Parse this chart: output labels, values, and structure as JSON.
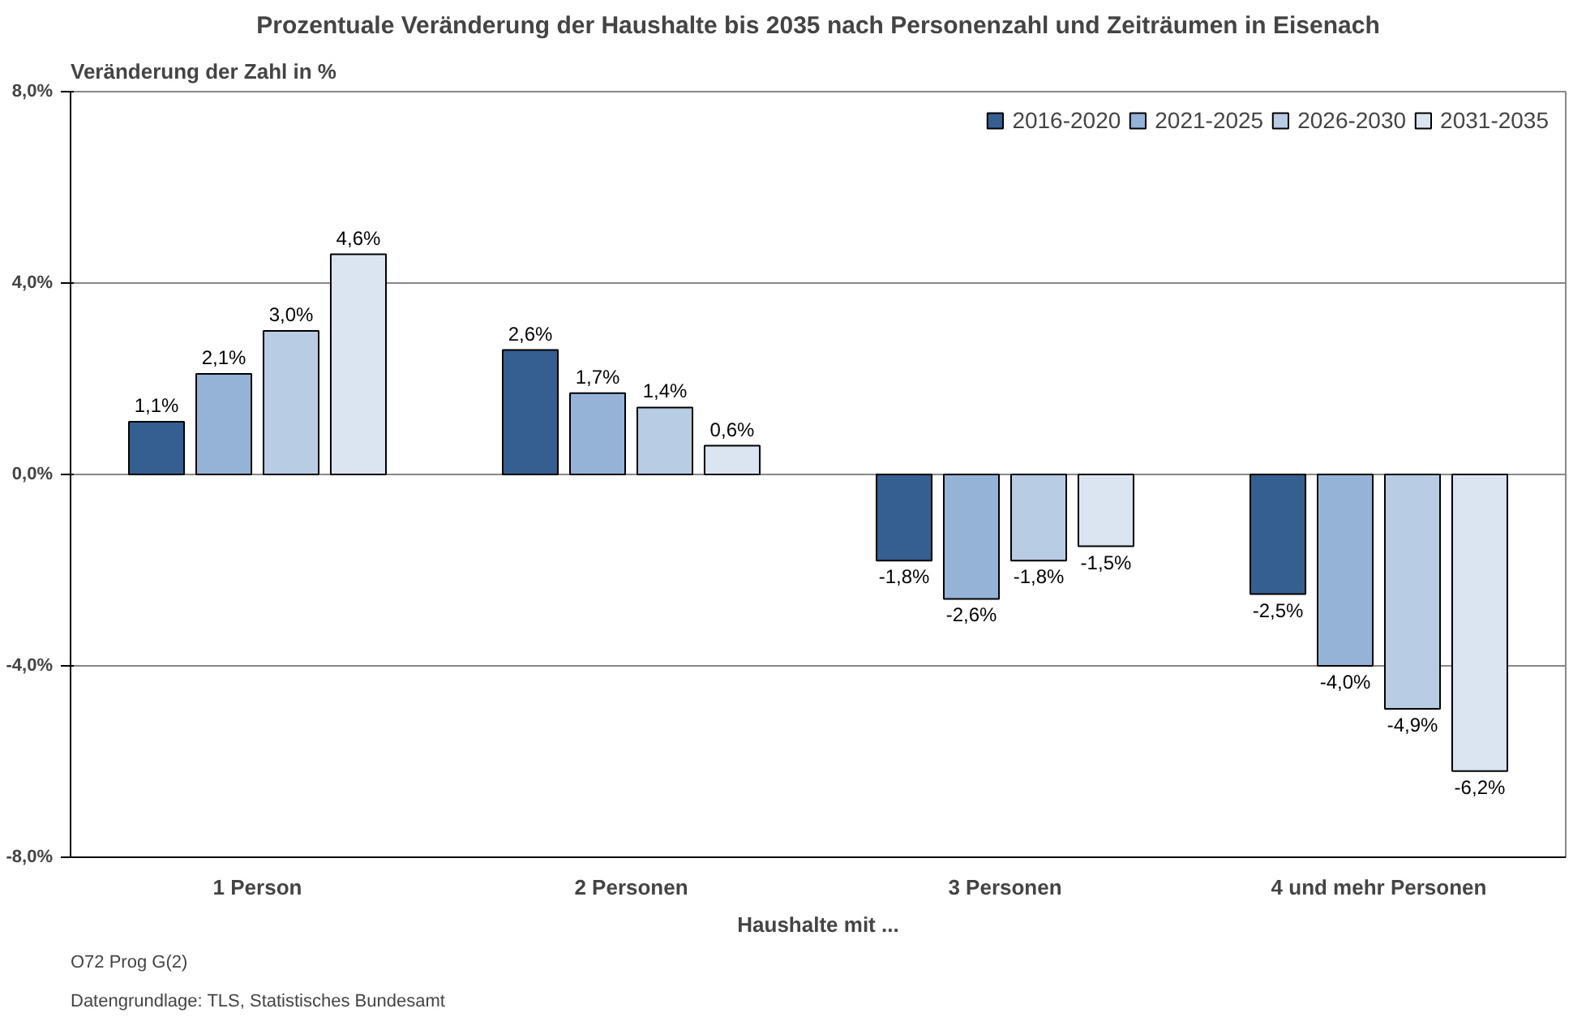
{
  "chart_data": {
    "type": "bar",
    "title": "Prozentuale Veränderung der Haushalte bis 2035 nach Personenzahl und Zeiträumen in Eisenach",
    "ylabel": "Veränderung der Zahl in %",
    "xlabel": "Haushalte mit ...",
    "categories": [
      "1 Person",
      "2 Personen",
      "3 Personen",
      "4 und mehr Personen"
    ],
    "series": [
      {
        "name": "2016-2020",
        "color": "#365f91",
        "values": [
          1.1,
          2.6,
          -1.8,
          -2.5
        ],
        "value_labels": [
          "1,1%",
          "2,6%",
          "-1,8%",
          "-2,5%"
        ]
      },
      {
        "name": "2021-2025",
        "color": "#95b3d7",
        "values": [
          2.1,
          1.7,
          -2.6,
          -4.0
        ],
        "value_labels": [
          "2,1%",
          "1,7%",
          "-2,6%",
          "-4,0%"
        ]
      },
      {
        "name": "2026-2030",
        "color": "#b8cce4",
        "values": [
          3.0,
          1.4,
          -1.8,
          -4.9
        ],
        "value_labels": [
          "3,0%",
          "1,4%",
          "-1,8%",
          "-4,9%"
        ]
      },
      {
        "name": "2031-2035",
        "color": "#dbe5f1",
        "values": [
          4.6,
          0.6,
          -1.5,
          -6.2
        ],
        "value_labels": [
          "4,6%",
          "0,6%",
          "-1,5%",
          "-6,2%"
        ]
      }
    ],
    "ylim": [
      -8,
      8
    ],
    "yticks": [
      {
        "value": -8,
        "label": "-8,0%"
      },
      {
        "value": -4,
        "label": "-4,0%"
      },
      {
        "value": 0,
        "label": "0,0%"
      },
      {
        "value": 4,
        "label": "4,0%"
      },
      {
        "value": 8,
        "label": "8,0%"
      }
    ],
    "grid": "y",
    "legend": "top right",
    "annotations": [
      "Datengrundlage: TLS, Statistisches Bundesamt",
      "O72 Prog G(2)"
    ]
  }
}
